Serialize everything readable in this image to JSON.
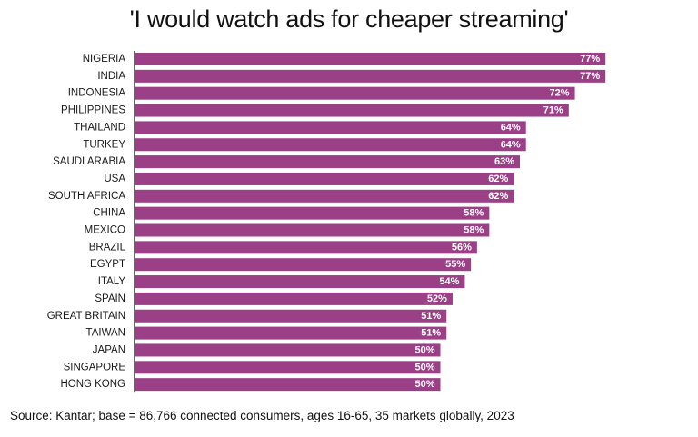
{
  "chart_data": {
    "type": "bar",
    "orientation": "horizontal",
    "title": "'I would watch ads for cheaper streaming'",
    "categories": [
      "NIGERIA",
      "INDIA",
      "INDONESIA",
      "PHILIPPINES",
      "THAILAND",
      "TURKEY",
      "SAUDI ARABIA",
      "USA",
      "SOUTH AFRICA",
      "CHINA",
      "MEXICO",
      "BRAZIL",
      "EGYPT",
      "ITALY",
      "SPAIN",
      "GREAT BRITAIN",
      "TAIWAN",
      "JAPAN",
      "SINGAPORE",
      "HONG KONG"
    ],
    "values": [
      77,
      77,
      72,
      71,
      64,
      64,
      63,
      62,
      62,
      58,
      58,
      56,
      55,
      54,
      52,
      51,
      51,
      50,
      50,
      50
    ],
    "value_labels": [
      "77%",
      "77%",
      "72%",
      "71%",
      "64%",
      "64%",
      "63%",
      "62%",
      "62%",
      "58%",
      "58%",
      "56%",
      "55%",
      "54%",
      "52%",
      "51%",
      "51%",
      "50%",
      "50%",
      "50%"
    ],
    "xlabel": "",
    "ylabel": "",
    "xlim": [
      0,
      100
    ],
    "grid": false,
    "legend": "none",
    "bar_color": "#9b3f87"
  },
  "source": "Source: Kantar; base = 86,766 connected consumers, ages 16-65, 35 markets globally,  2023"
}
